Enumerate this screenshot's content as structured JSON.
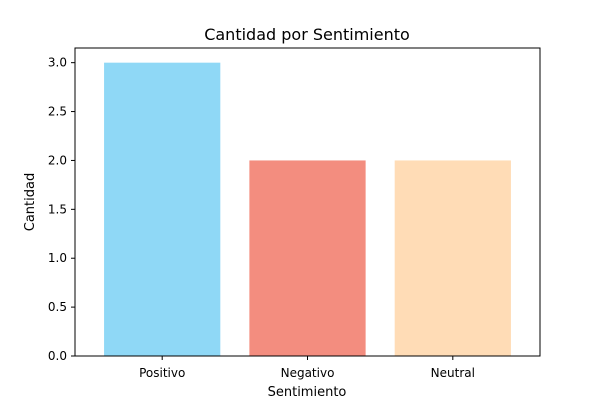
{
  "chart_data": {
    "type": "bar",
    "title": "Cantidad por Sentimiento",
    "xlabel": "Sentimiento",
    "ylabel": "Cantidad",
    "categories": [
      "Positivo",
      "Negativo",
      "Neutral"
    ],
    "values": [
      3,
      2,
      2
    ],
    "colors": [
      "#8fd8f6",
      "#f38d7f",
      "#ffdcb6"
    ],
    "ylim": [
      0,
      3.15
    ],
    "yticks": [
      "0.0",
      "0.5",
      "1.0",
      "1.5",
      "2.0",
      "2.5",
      "3.0"
    ],
    "grid": false,
    "legend": "none"
  }
}
